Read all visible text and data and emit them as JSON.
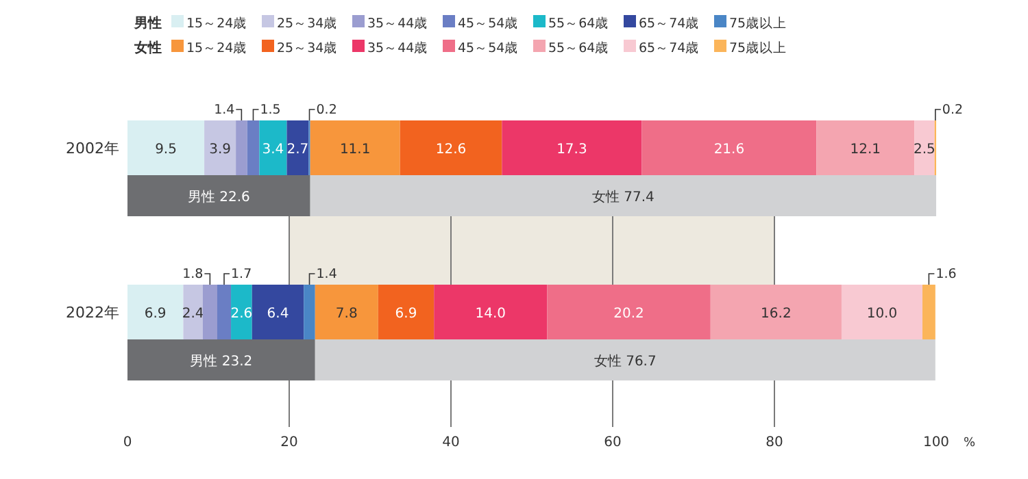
{
  "chart_data": {
    "type": "bar",
    "orientation": "horizontal",
    "stacked": true,
    "categories": [
      "2002年",
      null,
      "2022年",
      null
    ],
    "series": [
      {
        "name": "15～24歳",
        "color": "#d9eff2",
        "values": [
          9.5,
          null,
          6.9,
          null
        ]
      },
      {
        "name": "25～34歳",
        "color": "#c6c7e3",
        "values": [
          3.9,
          null,
          2.4,
          null
        ]
      },
      {
        "name": "35～44歳",
        "color": "#9b9dd0",
        "values": [
          1.4,
          null,
          1.8,
          null
        ]
      },
      {
        "name": "45～54歳",
        "color": "#6a7ec4",
        "values": [
          1.5,
          null,
          1.7,
          null
        ]
      },
      {
        "name": "55～64歳",
        "color": "#1cb9c9",
        "values": [
          3.4,
          null,
          2.6,
          null
        ]
      },
      {
        "name": "65～74歳",
        "color": "#34489f",
        "values": [
          2.7,
          null,
          6.4,
          null
        ]
      },
      {
        "name": "75歳以上",
        "color": "#4a86c6",
        "values": [
          0.2,
          null,
          1.4,
          null
        ]
      },
      {
        "name": "15～24歳",
        "color": "#f7963c",
        "values": [
          11.1,
          null,
          7.8,
          null
        ]
      },
      {
        "name": "25～34歳",
        "color": "#f2631f",
        "values": [
          12.6,
          null,
          6.9,
          null
        ]
      },
      {
        "name": "35～44歳",
        "color": "#ec3768",
        "values": [
          17.3,
          null,
          14.0,
          null
        ],
        "value_labels": [
          "17.3",
          null,
          "14.0",
          null
        ]
      },
      {
        "name": "45～54歳",
        "color": "#ef6e88",
        "values": [
          21.6,
          null,
          20.2,
          null
        ]
      },
      {
        "name": "55～64歳",
        "color": "#f4a5b0",
        "values": [
          12.1,
          null,
          16.2,
          null
        ]
      },
      {
        "name": "65～74歳",
        "color": "#f8c9d2",
        "values": [
          2.5,
          null,
          10.0,
          null
        ],
        "value_labels": [
          "2.5",
          null,
          "10.0",
          null
        ]
      },
      {
        "name": "75歳以上",
        "color": "#fbb55a",
        "values": [
          0.2,
          null,
          1.6,
          null
        ]
      },
      {
        "color": "#6d6e71",
        "values": [
          null,
          22.6,
          null,
          23.2
        ],
        "value_labels": [
          null,
          "男性 22.6",
          null,
          "男性 23.2"
        ]
      },
      {
        "color": "#d1d2d4",
        "values": [
          null,
          77.4,
          null,
          76.7
        ],
        "value_labels": [
          null,
          "女性 77.4",
          null,
          "女性 76.7"
        ]
      }
    ],
    "data_labels": true,
    "xlim": [
      0,
      100
    ],
    "xticks": [
      0,
      20,
      40,
      60,
      80,
      100
    ],
    "xlabel": "%",
    "grid": "x",
    "bands": [
      {
        "axis": "x",
        "from": 20,
        "to": 80,
        "color": "#ede9df"
      }
    ],
    "legend": "top left",
    "annotations": [
      "男性",
      "女性"
    ]
  }
}
